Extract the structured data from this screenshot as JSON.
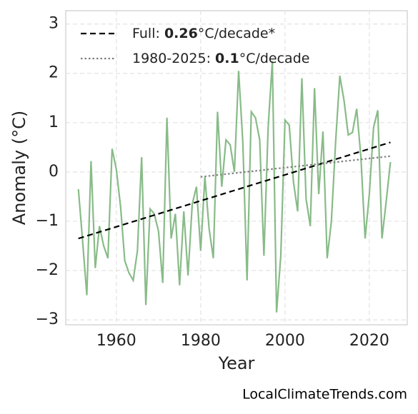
{
  "chart_data": {
    "type": "line",
    "xlabel": "Year",
    "ylabel": "Anomaly (°C)",
    "footer": "LocalClimateTrends.com",
    "xlim": [
      1948,
      2029
    ],
    "ylim": [
      -3.1,
      3.27
    ],
    "xticks": [
      1960,
      1980,
      2000,
      2020
    ],
    "yticks": [
      {
        "value": -3,
        "label": "−3"
      },
      {
        "value": -2,
        "label": "−2"
      },
      {
        "value": -1,
        "label": "−1"
      },
      0,
      1,
      2,
      3
    ],
    "grid": true,
    "legend": "upper left",
    "series": [
      {
        "color": "#88bb88",
        "style": "solid",
        "x": [
          1951,
          1952,
          1953,
          1954,
          1955,
          1956,
          1957,
          1958,
          1959,
          1960,
          1961,
          1962,
          1963,
          1964,
          1965,
          1966,
          1967,
          1968,
          1969,
          1970,
          1971,
          1972,
          1973,
          1974,
          1975,
          1976,
          1977,
          1978,
          1979,
          1980,
          1981,
          1982,
          1983,
          1984,
          1985,
          1986,
          1987,
          1988,
          1989,
          1990,
          1991,
          1992,
          1993,
          1994,
          1995,
          1996,
          1997,
          1998,
          1999,
          2000,
          2001,
          2002,
          2003,
          2004,
          2005,
          2006,
          2007,
          2008,
          2009,
          2010,
          2011,
          2012,
          2013,
          2014,
          2015,
          2016,
          2017,
          2018,
          2019,
          2020,
          2021,
          2022,
          2023,
          2024,
          2025
        ],
        "values": [
          -0.35,
          -1.4,
          -2.5,
          0.22,
          -1.95,
          -1.1,
          -1.5,
          -1.75,
          0.47,
          0.05,
          -0.7,
          -1.8,
          -2.05,
          -2.2,
          -1.6,
          0.3,
          -2.7,
          -0.75,
          -0.85,
          -1.2,
          -2.25,
          1.1,
          -1.35,
          -0.85,
          -2.3,
          -0.8,
          -2.1,
          -0.65,
          -0.3,
          -1.6,
          -0.1,
          -1.15,
          -1.75,
          1.22,
          -0.3,
          0.65,
          0.55,
          0.0,
          2.05,
          0.6,
          -2.2,
          1.22,
          1.1,
          0.65,
          -1.7,
          0.9,
          2.25,
          -2.85,
          -1.7,
          1.05,
          0.95,
          -0.2,
          -0.8,
          1.9,
          -0.55,
          -1.1,
          1.7,
          -0.45,
          0.82,
          -1.75,
          -1.0,
          0.6,
          1.95,
          1.45,
          0.75,
          0.8,
          1.28,
          0.3,
          -1.35,
          -0.45,
          0.9,
          1.25,
          -1.35,
          -0.6,
          0.2
        ]
      },
      {
        "label_parts": [
          "Full: ",
          "0.26",
          "°C/decade*"
        ],
        "color": "#000000",
        "style": "dashed",
        "x": [
          1951,
          2025
        ],
        "values": [
          -1.35,
          0.6
        ]
      },
      {
        "label_parts": [
          "1980-2025: ",
          "0.1",
          "°C/decade"
        ],
        "color": "#808080",
        "style": "dotted",
        "x": [
          1980,
          2025
        ],
        "values": [
          -0.1,
          0.32
        ]
      }
    ]
  }
}
